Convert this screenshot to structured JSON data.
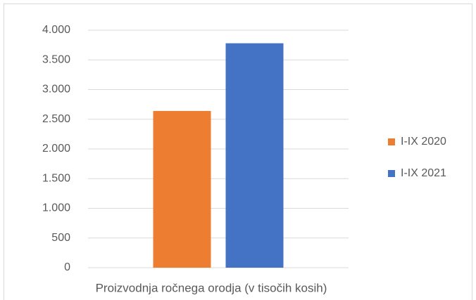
{
  "chart_data": {
    "type": "bar",
    "categories": [
      "Proizvodnja ročnega orodja (v tisočih kosih)"
    ],
    "series": [
      {
        "name": "I-IX 2020",
        "color": "#ed7d31",
        "values": [
          2640
        ]
      },
      {
        "name": "I-IX 2021",
        "color": "#4472c4",
        "values": [
          3780
        ]
      }
    ],
    "ylim": [
      0,
      4000
    ],
    "yticks": [
      0,
      500,
      {
        "value": 1000,
        "label": "1.000"
      },
      {
        "value": 1500,
        "label": "1.500"
      },
      {
        "value": 2000,
        "label": "2.000"
      },
      {
        "value": 2500,
        "label": "2.500"
      },
      {
        "value": 3000,
        "label": "3.000"
      },
      {
        "value": 3500,
        "label": "3.500"
      },
      {
        "value": 4000,
        "label": "4.000"
      }
    ],
    "grid": true,
    "legend": "right"
  }
}
